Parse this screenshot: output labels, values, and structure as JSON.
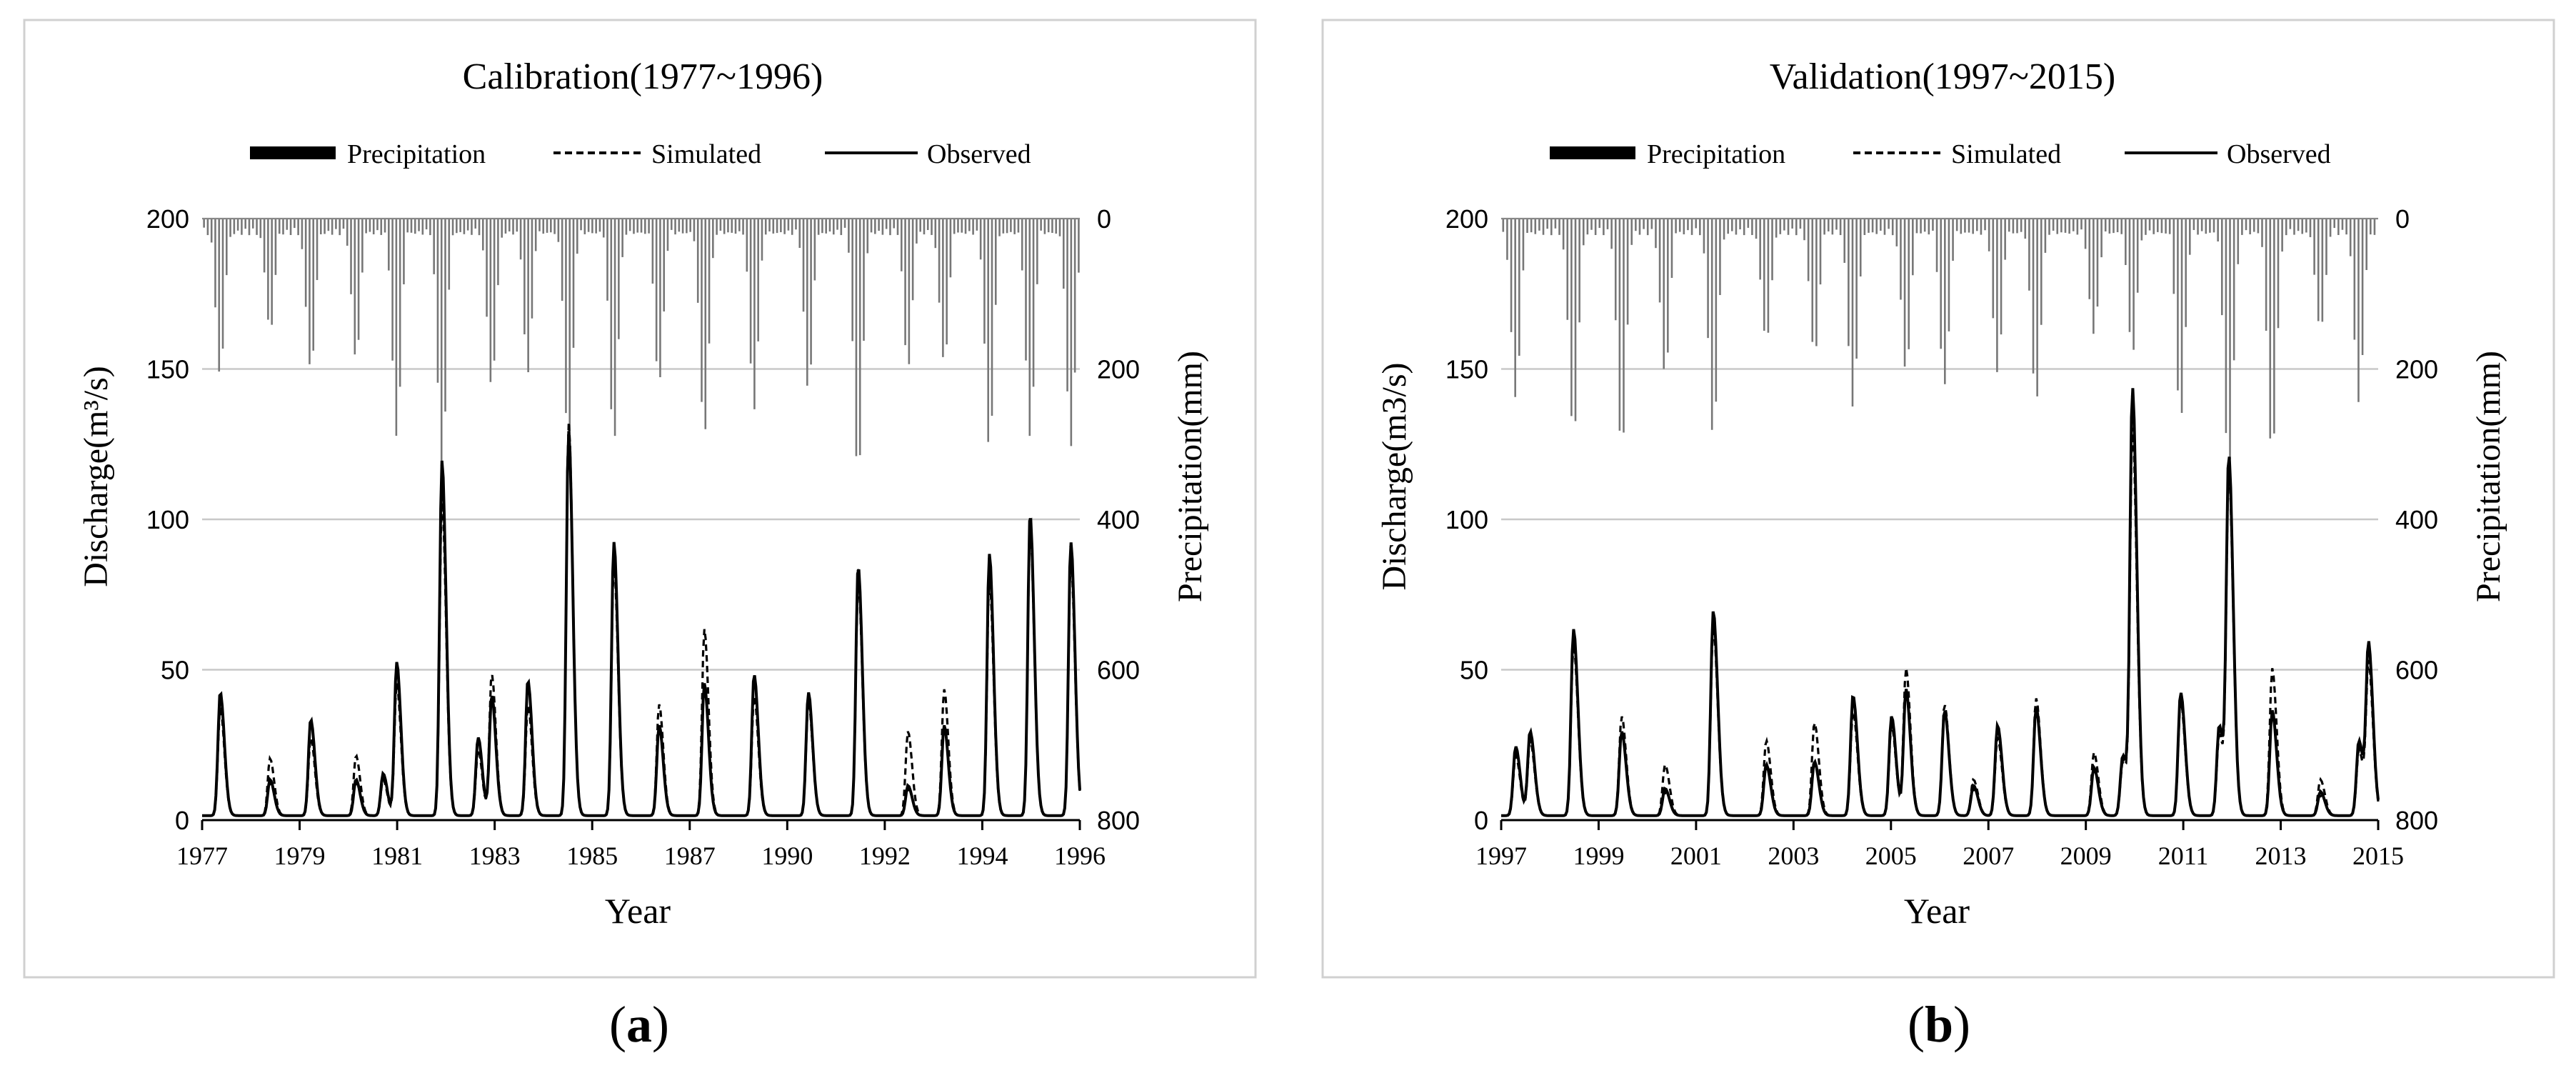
{
  "chart_data": [
    {
      "type": "line",
      "panel_label": "a",
      "title": "Calibration(1977~1996)",
      "xlabel": "Year",
      "ylabel": "Discharge(m³/s)",
      "y2label": "Precipitation(mm)",
      "xlim": [
        1977,
        1996.4
      ],
      "ylim": [
        0,
        200
      ],
      "y2lim": [
        0,
        800
      ],
      "y2_inverted": true,
      "xticks": [
        "1977",
        "1979",
        "1981",
        "1983",
        "1985",
        "1987",
        "1990",
        "1992",
        "1994",
        "1996"
      ],
      "yticks": [
        "0",
        "50",
        "100",
        "150",
        "200"
      ],
      "y2ticks": [
        "0",
        "200",
        "400",
        "600",
        "800"
      ],
      "grid": "horizontal",
      "legend": [
        "Precipitation",
        "Simulated",
        "Observed"
      ],
      "legend_position": "top",
      "peaks": [
        {
          "year": 1977.4,
          "observed": 41,
          "simulated": 36
        },
        {
          "year": 1978.5,
          "observed": 12,
          "simulated": 19
        },
        {
          "year": 1979.4,
          "observed": 32,
          "simulated": 26
        },
        {
          "year": 1980.4,
          "observed": 12,
          "simulated": 20
        },
        {
          "year": 1981.0,
          "observed": 14,
          "simulated": 12
        },
        {
          "year": 1981.3,
          "observed": 51,
          "simulated": 44
        },
        {
          "year": 1982.3,
          "observed": 118,
          "simulated": 106
        },
        {
          "year": 1983.1,
          "observed": 26,
          "simulated": 22
        },
        {
          "year": 1983.4,
          "observed": 40,
          "simulated": 47
        },
        {
          "year": 1984.2,
          "observed": 45,
          "simulated": 37
        },
        {
          "year": 1985.1,
          "observed": 128,
          "simulated": 131
        },
        {
          "year": 1986.1,
          "observed": 91,
          "simulated": 84
        },
        {
          "year": 1987.1,
          "observed": 30,
          "simulated": 37
        },
        {
          "year": 1988.1,
          "observed": 44,
          "simulated": 62
        },
        {
          "year": 1989.2,
          "observed": 47,
          "simulated": 40
        },
        {
          "year": 1990.4,
          "observed": 41,
          "simulated": 38
        },
        {
          "year": 1991.5,
          "observed": 83,
          "simulated": 78
        },
        {
          "year": 1992.6,
          "observed": 10,
          "simulated": 28
        },
        {
          "year": 1993.4,
          "observed": 30,
          "simulated": 42
        },
        {
          "year": 1994.4,
          "observed": 87,
          "simulated": 79
        },
        {
          "year": 1995.3,
          "observed": 100,
          "simulated": 96
        },
        {
          "year": 1996.2,
          "observed": 91,
          "simulated": 85
        }
      ],
      "precipitation_peaks": [
        {
          "year": 1977.4,
          "mm": 200
        },
        {
          "year": 1978.5,
          "mm": 145
        },
        {
          "year": 1979.4,
          "mm": 200
        },
        {
          "year": 1980.4,
          "mm": 180
        },
        {
          "year": 1981.3,
          "mm": 285
        },
        {
          "year": 1982.3,
          "mm": 330
        },
        {
          "year": 1983.4,
          "mm": 220
        },
        {
          "year": 1984.2,
          "mm": 195
        },
        {
          "year": 1985.1,
          "mm": 300
        },
        {
          "year": 1986.1,
          "mm": 290
        },
        {
          "year": 1987.1,
          "mm": 215
        },
        {
          "year": 1988.1,
          "mm": 285
        },
        {
          "year": 1989.2,
          "mm": 245
        },
        {
          "year": 1990.4,
          "mm": 220
        },
        {
          "year": 1991.5,
          "mm": 340
        },
        {
          "year": 1992.6,
          "mm": 190
        },
        {
          "year": 1993.4,
          "mm": 190
        },
        {
          "year": 1994.4,
          "mm": 300
        },
        {
          "year": 1995.3,
          "mm": 285
        },
        {
          "year": 1996.2,
          "mm": 300
        }
      ]
    },
    {
      "type": "line",
      "panel_label": "b",
      "title": "Validation(1997~2015)",
      "xlabel": "Year",
      "ylabel": "Discharge(m3/s)",
      "y2label": "Precipitation(mm)",
      "xlim": [
        1997,
        2015.2
      ],
      "ylim": [
        0,
        200
      ],
      "y2lim": [
        0,
        800
      ],
      "y2_inverted": true,
      "xticks": [
        "1997",
        "1999",
        "2001",
        "2003",
        "2005",
        "2007",
        "2009",
        "2011",
        "2013",
        "2015"
      ],
      "yticks": [
        "0",
        "50",
        "100",
        "150",
        "200"
      ],
      "y2ticks": [
        "0",
        "200",
        "400",
        "600",
        "800"
      ],
      "grid": "horizontal",
      "legend": [
        "Precipitation",
        "Simulated",
        "Observed"
      ],
      "legend_position": "top",
      "peaks": [
        {
          "year": 1997.3,
          "observed": 23,
          "simulated": 20
        },
        {
          "year": 1997.6,
          "observed": 28,
          "simulated": 25
        },
        {
          "year": 1998.5,
          "observed": 62,
          "simulated": 57
        },
        {
          "year": 1999.5,
          "observed": 28,
          "simulated": 33
        },
        {
          "year": 2000.4,
          "observed": 9,
          "simulated": 17
        },
        {
          "year": 2001.4,
          "observed": 68,
          "simulated": 63
        },
        {
          "year": 2002.5,
          "observed": 17,
          "simulated": 25
        },
        {
          "year": 2003.5,
          "observed": 18,
          "simulated": 31
        },
        {
          "year": 2004.3,
          "observed": 40,
          "simulated": 35
        },
        {
          "year": 2005.1,
          "observed": 33,
          "simulated": 30
        },
        {
          "year": 2005.4,
          "observed": 42,
          "simulated": 49
        },
        {
          "year": 2006.2,
          "observed": 35,
          "simulated": 37
        },
        {
          "year": 2006.8,
          "observed": 10,
          "simulated": 12
        },
        {
          "year": 2007.3,
          "observed": 30,
          "simulated": 26
        },
        {
          "year": 2008.1,
          "observed": 36,
          "simulated": 39
        },
        {
          "year": 2009.3,
          "observed": 16,
          "simulated": 21
        },
        {
          "year": 2009.9,
          "observed": 20,
          "simulated": 18
        },
        {
          "year": 2010.1,
          "observed": 141,
          "simulated": 128
        },
        {
          "year": 2011.1,
          "observed": 41,
          "simulated": 38
        },
        {
          "year": 2011.9,
          "observed": 30,
          "simulated": 27
        },
        {
          "year": 2012.1,
          "observed": 118,
          "simulated": 113
        },
        {
          "year": 2013.0,
          "observed": 35,
          "simulated": 49
        },
        {
          "year": 2014.0,
          "observed": 8,
          "simulated": 12
        },
        {
          "year": 2014.8,
          "observed": 25,
          "simulated": 22
        },
        {
          "year": 2015.0,
          "observed": 56,
          "simulated": 50
        }
      ],
      "precipitation_peaks": [
        {
          "year": 1997.3,
          "mm": 230
        },
        {
          "year": 1998.5,
          "mm": 285
        },
        {
          "year": 1999.5,
          "mm": 300
        },
        {
          "year": 2000.4,
          "mm": 200
        },
        {
          "year": 2001.4,
          "mm": 280
        },
        {
          "year": 2002.5,
          "mm": 160
        },
        {
          "year": 2003.5,
          "mm": 175
        },
        {
          "year": 2004.3,
          "mm": 245
        },
        {
          "year": 2005.4,
          "mm": 195
        },
        {
          "year": 2006.2,
          "mm": 220
        },
        {
          "year": 2007.3,
          "mm": 195
        },
        {
          "year": 2008.1,
          "mm": 240
        },
        {
          "year": 2009.3,
          "mm": 150
        },
        {
          "year": 2010.1,
          "mm": 170
        },
        {
          "year": 2011.1,
          "mm": 260
        },
        {
          "year": 2012.1,
          "mm": 330
        },
        {
          "year": 2013.0,
          "mm": 310
        },
        {
          "year": 2014.0,
          "mm": 145
        },
        {
          "year": 2014.8,
          "mm": 235
        }
      ]
    }
  ]
}
